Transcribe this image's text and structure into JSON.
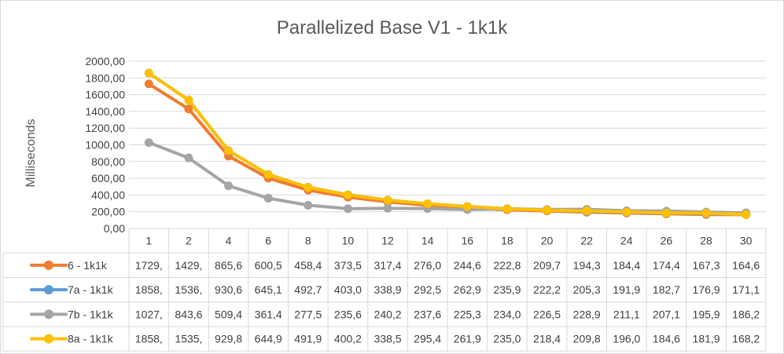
{
  "chart_data": {
    "type": "line",
    "title": "Parallelized Base V1 - 1k1k",
    "ylabel": "Milliseconds",
    "xlabel": "",
    "ylim": [
      0,
      2000
    ],
    "ytick_step": 200,
    "ytick_labels": [
      "0,00",
      "200,00",
      "400,00",
      "600,00",
      "800,00",
      "1000,00",
      "1200,00",
      "1400,00",
      "1600,00",
      "1800,00",
      "2000,00"
    ],
    "grid": true,
    "legend": "data-table-left",
    "categories": [
      "1",
      "2",
      "4",
      "6",
      "8",
      "10",
      "12",
      "14",
      "16",
      "18",
      "20",
      "22",
      "24",
      "26",
      "28",
      "30"
    ],
    "series": [
      {
        "name": "6 - 1k1k",
        "color": "#ED7D31",
        "values": [
          1729,
          1429,
          865.6,
          600.5,
          458.4,
          373.5,
          317.4,
          276.0,
          244.6,
          222.8,
          209.7,
          194.3,
          184.4,
          174.4,
          167.3,
          164.6
        ],
        "table_labels": [
          "1729,",
          "1429,",
          "865,6",
          "600,5",
          "458,4",
          "373,5",
          "317,4",
          "276,0",
          "244,6",
          "222,8",
          "209,7",
          "194,3",
          "184,4",
          "174,4",
          "167,3",
          "164,6"
        ]
      },
      {
        "name": "7a - 1k1k",
        "color": "#5B9BD5",
        "values": [
          1858,
          1536,
          930.6,
          645.1,
          492.7,
          403.0,
          338.9,
          292.5,
          262.9,
          235.9,
          222.2,
          205.3,
          191.9,
          182.7,
          176.9,
          171.1
        ],
        "table_labels": [
          "1858,",
          "1536,",
          "930,6",
          "645,1",
          "492,7",
          "403,0",
          "338,9",
          "292,5",
          "262,9",
          "235,9",
          "222,2",
          "205,3",
          "191,9",
          "182,7",
          "176,9",
          "171,1"
        ]
      },
      {
        "name": "7b - 1k1k",
        "color": "#A5A5A5",
        "values": [
          1027,
          843.6,
          509.4,
          361.4,
          277.5,
          235.6,
          240.2,
          237.6,
          225.3,
          234.0,
          226.5,
          228.9,
          211.1,
          207.1,
          195.9,
          186.2
        ],
        "table_labels": [
          "1027,",
          "843,6",
          "509,4",
          "361,4",
          "277,5",
          "235,6",
          "240,2",
          "237,6",
          "225,3",
          "234,0",
          "226,5",
          "228,9",
          "211,1",
          "207,1",
          "195,9",
          "186,2"
        ]
      },
      {
        "name": "8a - 1k1k",
        "color": "#FFC000",
        "values": [
          1858,
          1535,
          929.8,
          644.9,
          491.9,
          400.2,
          338.5,
          295.4,
          261.9,
          235.0,
          218.4,
          209.8,
          196.0,
          184.6,
          181.9,
          168.2
        ],
        "table_labels": [
          "1858,",
          "1535,",
          "929,8",
          "644,9",
          "491,9",
          "400,2",
          "338,5",
          "295,4",
          "261,9",
          "235,0",
          "218,4",
          "209,8",
          "196,0",
          "184,6",
          "181,9",
          "168,2"
        ]
      }
    ]
  }
}
